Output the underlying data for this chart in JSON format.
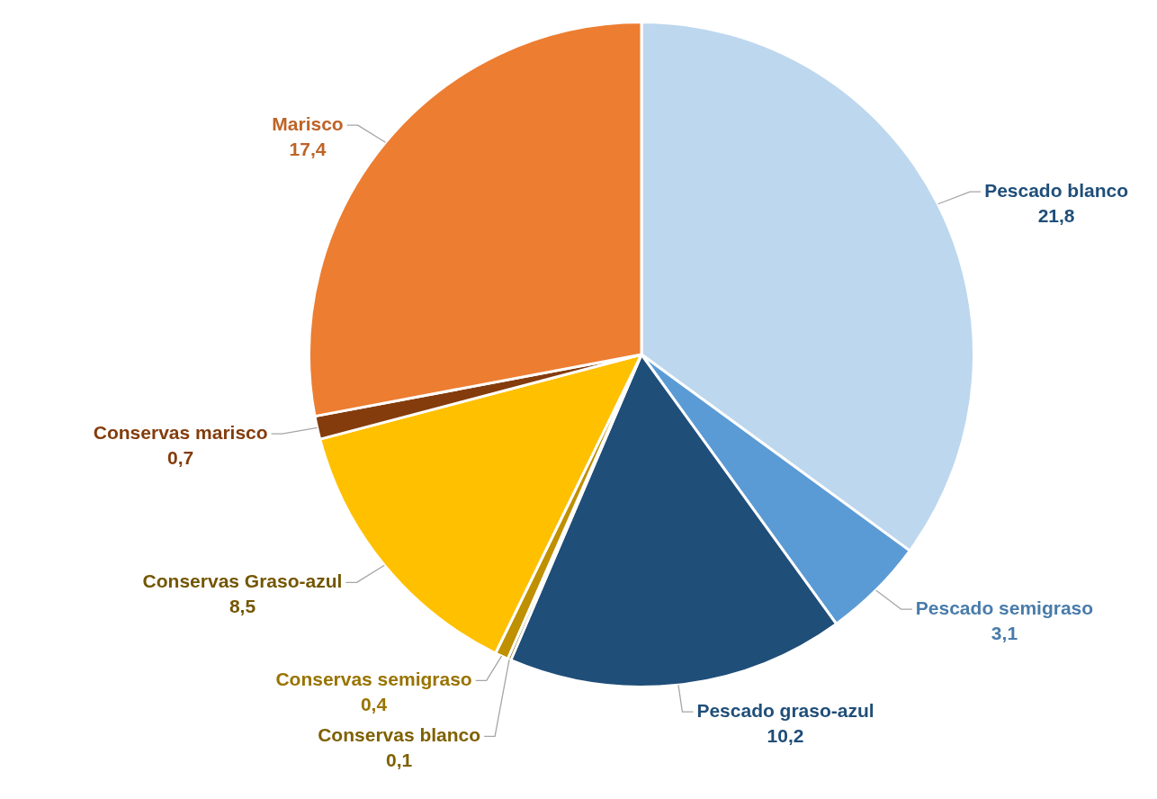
{
  "chart_data": {
    "type": "pie",
    "categories": [
      "Pescado blanco",
      "Pescado semigraso",
      "Pescado graso-azul",
      "Conservas blanco",
      "Conservas semigraso",
      "Conservas Graso-azul",
      "Conservas marisco",
      "Marisco"
    ],
    "values": [
      21.8,
      3.1,
      10.2,
      0.1,
      0.4,
      8.5,
      0.7,
      17.4
    ],
    "colors": [
      "#bdd7ee",
      "#5b9bd5",
      "#1f4e79",
      "#7f6000",
      "#bf9000",
      "#ffc000",
      "#843c0c",
      "#ed7d31"
    ],
    "value_labels": [
      "21,8",
      "3,1",
      "10,2",
      "0,1",
      "0,4",
      "8,5",
      "0,7",
      "17,4"
    ],
    "legend": false
  }
}
